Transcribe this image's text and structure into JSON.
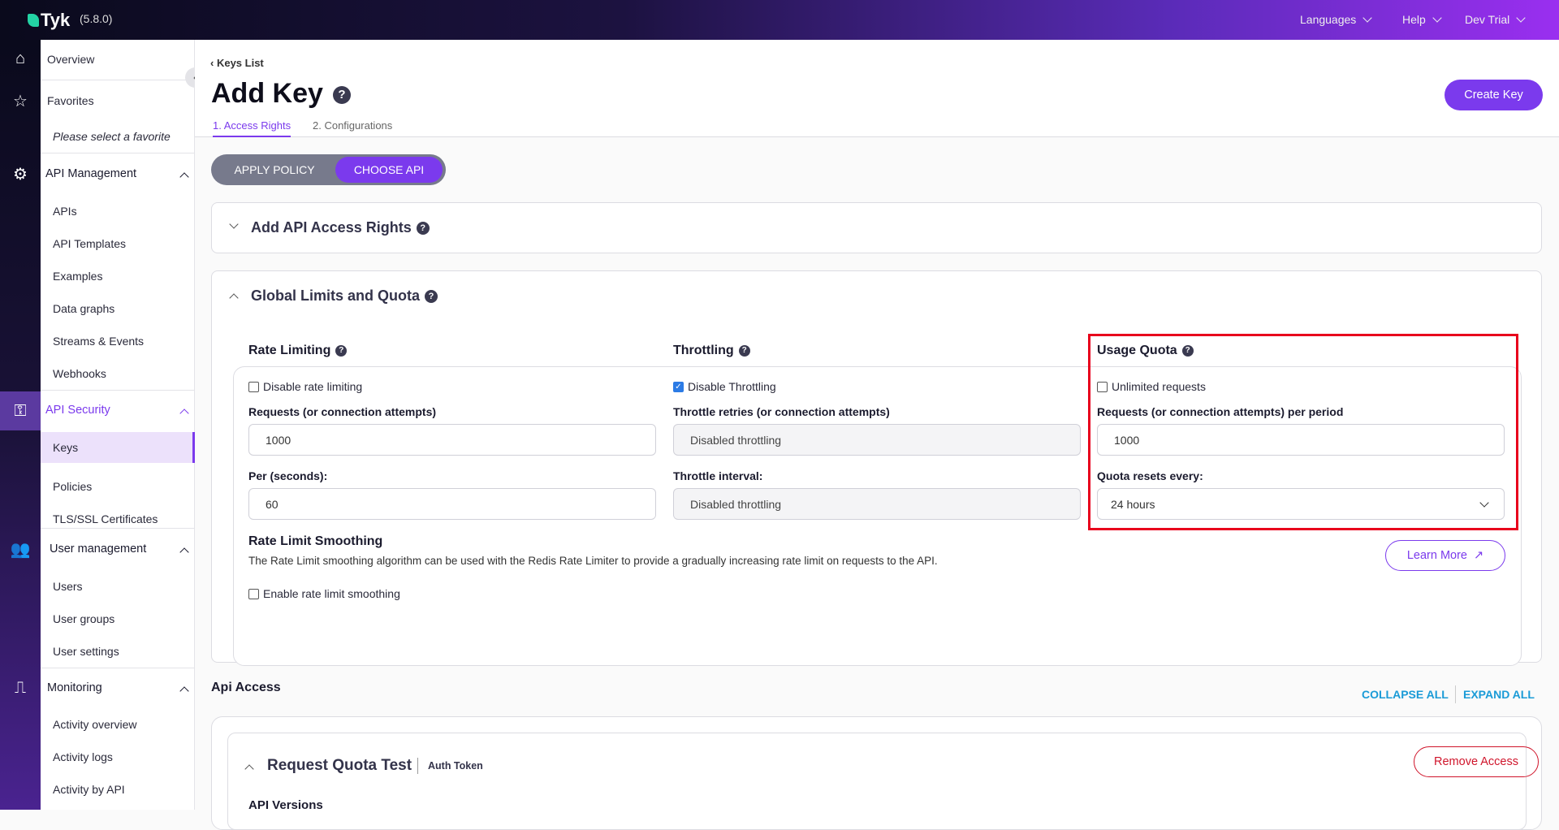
{
  "header": {
    "brand": "Tyk",
    "version": "(5.8.0)",
    "nav": [
      "Languages",
      "Help",
      "Dev Trial"
    ]
  },
  "sidebar": {
    "overview": "Overview",
    "favorites": "Favorites",
    "favorites_empty": "Please select a favorite",
    "sections": [
      {
        "title": "API Management",
        "items": [
          "APIs",
          "API Templates",
          "Examples",
          "Data graphs",
          "Streams & Events",
          "Webhooks"
        ]
      },
      {
        "title": "API Security",
        "items": [
          "Keys",
          "Policies",
          "TLS/SSL Certificates"
        ]
      },
      {
        "title": "User management",
        "items": [
          "Users",
          "User groups",
          "User settings"
        ]
      },
      {
        "title": "Monitoring",
        "items": [
          "Activity overview",
          "Activity logs",
          "Activity by API"
        ]
      }
    ],
    "active_item": "Keys"
  },
  "page": {
    "breadcrumb": "Keys List",
    "title": "Add Key",
    "create_button": "Create Key",
    "tabs": [
      "1. Access Rights",
      "2. Configurations"
    ],
    "active_tab": "1. Access Rights",
    "toggle": [
      "APPLY POLICY",
      "CHOOSE API"
    ],
    "active_toggle": "CHOOSE API"
  },
  "access_rights": {
    "title": "Add API Access Rights"
  },
  "global": {
    "title": "Global Limits and Quota",
    "rate": {
      "title": "Rate Limiting",
      "checkbox": "Disable rate limiting",
      "checked": false,
      "req_label": "Requests (or connection attempts)",
      "req_value": "1000",
      "per_label": "Per (seconds):",
      "per_value": "60"
    },
    "throttle": {
      "title": "Throttling",
      "checkbox": "Disable Throttling",
      "checked": true,
      "retries_label": "Throttle retries (or connection attempts)",
      "retries_value": "Disabled throttling",
      "interval_label": "Throttle interval:",
      "interval_value": "Disabled throttling"
    },
    "quota": {
      "title": "Usage Quota",
      "checkbox": "Unlimited requests",
      "checked": false,
      "req_label": "Requests (or connection attempts) per period",
      "req_value": "1000",
      "reset_label": "Quota resets every:",
      "reset_value": "24 hours"
    },
    "smoothing": {
      "title": "Rate Limit Smoothing",
      "desc": "The Rate Limit smoothing algorithm can be used with the Redis Rate Limiter to provide a gradually increasing rate limit on requests to the API.",
      "checkbox": "Enable rate limit smoothing",
      "checked": false,
      "learn_more": "Learn More"
    }
  },
  "api_access": {
    "title": "Api Access",
    "collapse_all": "COLLAPSE ALL",
    "expand_all": "EXPAND ALL",
    "api": {
      "name": "Request Quota Test",
      "auth": "Auth Token",
      "remove": "Remove Access",
      "versions_label": "API Versions"
    }
  },
  "colors": {
    "accent": "#7b3aed",
    "highlight": "#e8001c",
    "link": "#1a9bd7",
    "danger": "#d0152b"
  }
}
